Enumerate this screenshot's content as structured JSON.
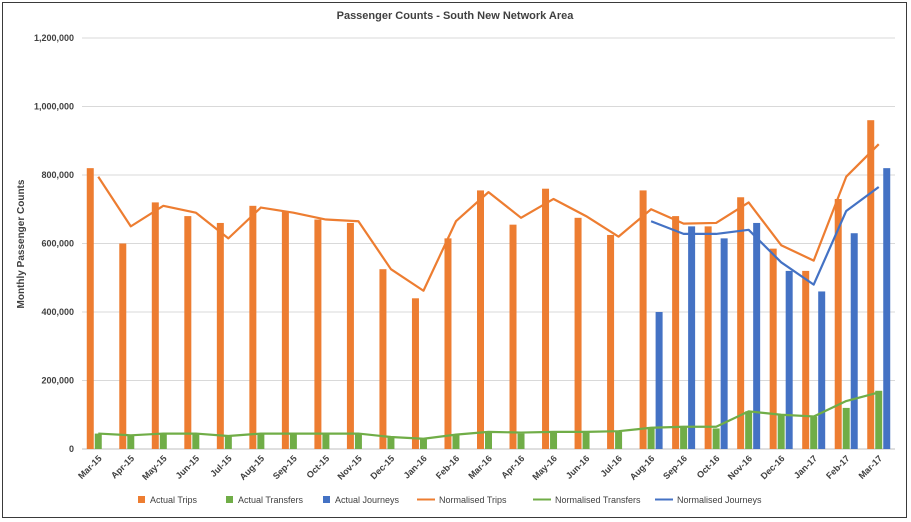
{
  "chart_data": {
    "type": "bar",
    "title": "Passenger Counts - South New Network Area",
    "xlabel": "",
    "ylabel": "Monthly Passenger Counts",
    "ylim": [
      0,
      1200000
    ],
    "yticks": [
      0,
      200000,
      400000,
      600000,
      800000,
      1000000,
      1200000
    ],
    "ytick_labels": [
      "0",
      "200,000",
      "400,000",
      "600,000",
      "800,000",
      "1,000,000",
      "1,200,000"
    ],
    "grid": true,
    "legend_position": "bottom",
    "categories": [
      "Mar-15",
      "Apr-15",
      "May-15",
      "Jun-15",
      "Jul-15",
      "Aug-15",
      "Sep-15",
      "Oct-15",
      "Nov-15",
      "Dec-15",
      "Jan-16",
      "Feb-16",
      "Mar-16",
      "Apr-16",
      "May-16",
      "Jun-16",
      "Jul-16",
      "Aug-16",
      "Sep-16",
      "Oct-16",
      "Nov-16",
      "Dec-16",
      "Jan-17",
      "Feb-17",
      "Mar-17"
    ],
    "bar_series": [
      {
        "name": "Actual Trips",
        "color": "#ED7D31",
        "values": [
          820000,
          600000,
          720000,
          680000,
          660000,
          710000,
          695000,
          670000,
          660000,
          525000,
          440000,
          615000,
          755000,
          655000,
          760000,
          675000,
          625000,
          755000,
          680000,
          650000,
          735000,
          585000,
          520000,
          730000,
          960000
        ]
      },
      {
        "name": "Actual Transfers",
        "color": "#70AD47",
        "values": [
          45000,
          40000,
          43000,
          45000,
          40000,
          45000,
          45000,
          45000,
          45000,
          35000,
          32000,
          42000,
          48000,
          45000,
          48000,
          48000,
          50000,
          60000,
          65000,
          60000,
          110000,
          100000,
          95000,
          120000,
          170000
        ]
      },
      {
        "name": "Actual Journeys",
        "color": "#4472C4",
        "values": [
          null,
          null,
          null,
          null,
          null,
          null,
          null,
          null,
          null,
          null,
          null,
          null,
          null,
          null,
          null,
          null,
          null,
          400000,
          650000,
          615000,
          660000,
          520000,
          460000,
          630000,
          820000
        ]
      }
    ],
    "line_series": [
      {
        "name": "Normalised Trips",
        "color": "#ED7D31",
        "values": [
          795000,
          650000,
          710000,
          690000,
          615000,
          705000,
          690000,
          670000,
          665000,
          525000,
          462000,
          665000,
          750000,
          675000,
          730000,
          680000,
          620000,
          700000,
          658000,
          660000,
          720000,
          595000,
          550000,
          795000,
          890000
        ]
      },
      {
        "name": "Normalised Transfers",
        "color": "#70AD47",
        "values": [
          45000,
          40000,
          45000,
          45000,
          38000,
          45000,
          45000,
          45000,
          45000,
          35000,
          30000,
          42000,
          50000,
          48000,
          50000,
          50000,
          52000,
          62000,
          65000,
          65000,
          110000,
          100000,
          95000,
          140000,
          165000
        ]
      },
      {
        "name": "Normalised Journeys",
        "color": "#4472C4",
        "values": [
          null,
          null,
          null,
          null,
          null,
          null,
          null,
          null,
          null,
          null,
          null,
          null,
          null,
          null,
          null,
          null,
          null,
          665000,
          628000,
          628000,
          640000,
          545000,
          480000,
          695000,
          765000
        ]
      }
    ]
  }
}
